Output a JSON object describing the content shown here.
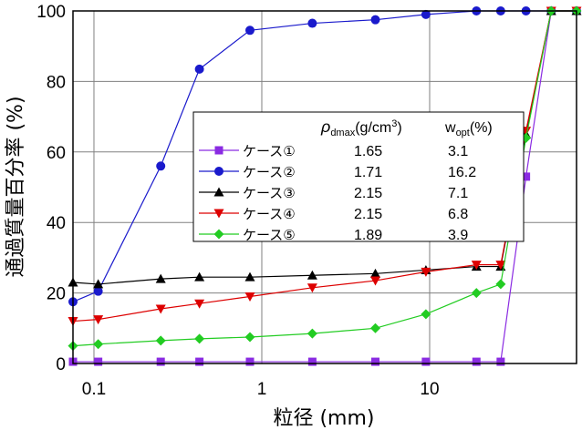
{
  "chart_data": {
    "type": "line",
    "xlabel": "粒径 (mm)",
    "ylabel": "通過質量百分率 (%)",
    "xscale": "log",
    "xlim": [
      0.075,
      75
    ],
    "ylim": [
      0,
      100
    ],
    "x_ticks": [
      "0.1",
      "1",
      "10"
    ],
    "y_ticks": [
      "0",
      "20",
      "40",
      "60",
      "80",
      "100"
    ],
    "grid": true,
    "legend_position": "center-right",
    "legend_headers": {
      "rho": "ρ",
      "rho_sub": "dmax",
      "rho_unit": "(g/cm",
      "rho_sup": "3",
      "rho_close": ")",
      "w": "w",
      "w_sub": "opt",
      "w_unit": "(%)"
    },
    "series": [
      {
        "name": "ケース①",
        "rho": "1.65",
        "w": "3.1",
        "color": "#8a2be2",
        "marker": "square",
        "x": [
          0.075,
          0.106,
          0.25,
          0.425,
          0.85,
          2,
          4.75,
          9.5,
          19,
          26.5,
          37.5,
          53,
          75
        ],
        "y": [
          0.5,
          0.5,
          0.5,
          0.5,
          0.5,
          0.5,
          0.5,
          0.5,
          0.5,
          0.5,
          53,
          100,
          100
        ]
      },
      {
        "name": "ケース②",
        "rho": "1.71",
        "w": "16.2",
        "color": "#1a1acc",
        "marker": "circle",
        "x": [
          0.075,
          0.106,
          0.25,
          0.425,
          0.85,
          2,
          4.75,
          9.5,
          19,
          26.5,
          37.5,
          53,
          75
        ],
        "y": [
          17.5,
          20.5,
          56,
          83.5,
          94.5,
          96.5,
          97.5,
          99,
          100,
          100,
          100,
          100,
          100
        ]
      },
      {
        "name": "ケース③",
        "rho": "2.15",
        "w": "7.1",
        "color": "#000000",
        "marker": "triangle-up",
        "x": [
          0.075,
          0.106,
          0.25,
          0.425,
          0.85,
          2,
          4.75,
          9.5,
          19,
          26.5,
          37.5,
          53,
          75
        ],
        "y": [
          23,
          22.5,
          24,
          24.5,
          24.5,
          25,
          25.5,
          26.5,
          27.5,
          27.5,
          65,
          100,
          100
        ]
      },
      {
        "name": "ケース④",
        "rho": "2.15",
        "w": "6.8",
        "color": "#dd0000",
        "marker": "triangle-down",
        "x": [
          0.075,
          0.106,
          0.25,
          0.425,
          0.85,
          2,
          4.75,
          9.5,
          19,
          26.5,
          37.5,
          53,
          75
        ],
        "y": [
          12,
          12.5,
          15.5,
          17,
          19,
          21.5,
          23.5,
          26,
          28,
          28,
          66,
          100,
          100
        ]
      },
      {
        "name": "ケース⑤",
        "rho": "1.89",
        "w": "3.9",
        "color": "#22cc22",
        "marker": "diamond",
        "x": [
          0.075,
          0.106,
          0.25,
          0.425,
          0.85,
          2,
          4.75,
          9.5,
          19,
          26.5,
          37.5,
          53,
          75
        ],
        "y": [
          5,
          5.5,
          6.5,
          7,
          7.5,
          8.5,
          10,
          14,
          20,
          22.5,
          64,
          100,
          100
        ]
      }
    ]
  }
}
